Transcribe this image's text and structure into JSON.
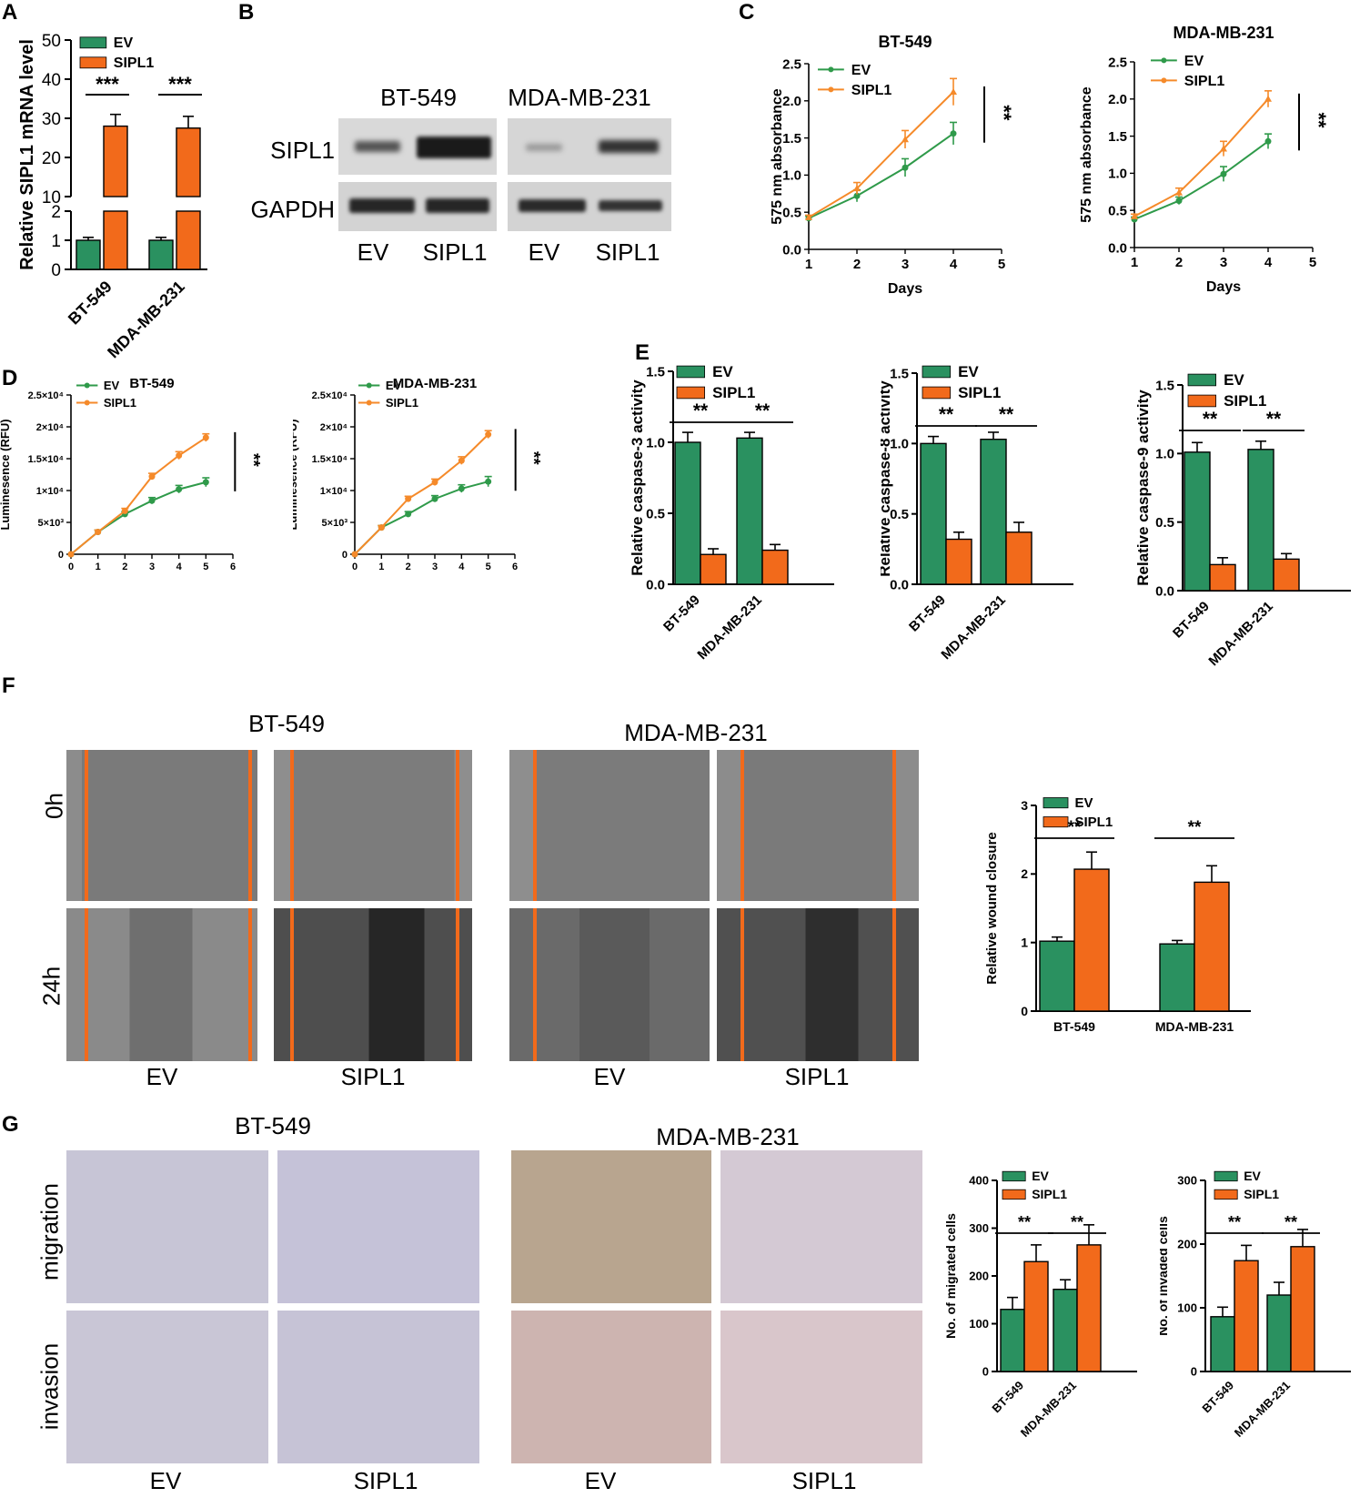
{
  "colors": {
    "ev": "#2a9160",
    "sipl1": "#f26a1b",
    "ev_line": "#2f9a4a",
    "sipl1_line": "#f58a2a"
  },
  "panels": {
    "a": "A",
    "b": "B",
    "c": "C",
    "d": "D",
    "e": "E",
    "f": "F",
    "g": "G"
  },
  "legend": {
    "ev": "EV",
    "sipl1": "SIPL1"
  },
  "cells": {
    "bt549": "BT-549",
    "mda": "MDA-MB-231"
  },
  "blot": {
    "row1": "SIPL1",
    "row2": "GAPDH",
    "col1": "EV",
    "col2": "SIPL1",
    "col3": "EV",
    "col4": "SIPL1"
  },
  "wound": {
    "t0": "0h",
    "t24": "24h",
    "col1": "EV",
    "col2": "SIPL1",
    "col3": "EV",
    "col4": "SIPL1"
  },
  "transwell": {
    "r1": "migration",
    "r2": "invasion",
    "col1": "EV",
    "col2": "SIPL1",
    "col3": "EV",
    "col4": "SIPL1"
  },
  "chart_data": [
    {
      "id": "A",
      "type": "bar",
      "ylabel": "Relative SIPL1 mRNA level",
      "categories": [
        "BT-549",
        "MDA-MB-231"
      ],
      "series": [
        {
          "name": "EV",
          "values": [
            1,
            1
          ],
          "errors": [
            0.1,
            0.1
          ]
        },
        {
          "name": "SIPL1",
          "values": [
            28,
            27.5
          ],
          "errors": [
            3,
            3
          ]
        }
      ],
      "y_broken": true,
      "ylim_lower": [
        0,
        2
      ],
      "ylim_upper": [
        10,
        50
      ],
      "yticks": [
        "0",
        "1",
        "2",
        "10",
        "20",
        "30",
        "40",
        "50"
      ],
      "annotations": [
        "***",
        "***"
      ]
    },
    {
      "id": "C1",
      "type": "line",
      "title": "BT-549",
      "xlabel": "Days",
      "ylabel": "575 nm absorbance",
      "xlim": [
        1,
        5
      ],
      "ylim": [
        0,
        2.5
      ],
      "xticks": [
        "1",
        "2",
        "3",
        "4",
        "5"
      ],
      "yticks": [
        "0.0",
        "0.5",
        "1.0",
        "1.5",
        "2.0",
        "2.5"
      ],
      "x": [
        1,
        2,
        3,
        4
      ],
      "series": [
        {
          "name": "EV",
          "values": [
            0.42,
            0.72,
            1.1,
            1.56
          ],
          "errors": [
            0.03,
            0.08,
            0.12,
            0.15
          ]
        },
        {
          "name": "SIPL1",
          "values": [
            0.43,
            0.82,
            1.48,
            2.12
          ],
          "errors": [
            0.03,
            0.08,
            0.12,
            0.18
          ]
        }
      ],
      "annotations": [
        "**"
      ]
    },
    {
      "id": "C2",
      "type": "line",
      "title": "MDA-MB-231",
      "xlabel": "Days",
      "ylabel": "575 nm absorbance",
      "xlim": [
        1,
        5
      ],
      "ylim": [
        0,
        2.5
      ],
      "xticks": [
        "1",
        "2",
        "3",
        "4",
        "5"
      ],
      "yticks": [
        "0.0",
        "0.5",
        "1.0",
        "1.5",
        "2.0",
        "2.5"
      ],
      "x": [
        1,
        2,
        3,
        4
      ],
      "series": [
        {
          "name": "EV",
          "values": [
            0.38,
            0.63,
            0.99,
            1.43
          ],
          "errors": [
            0.03,
            0.05,
            0.1,
            0.1
          ]
        },
        {
          "name": "SIPL1",
          "values": [
            0.42,
            0.74,
            1.33,
            2.0
          ],
          "errors": [
            0.03,
            0.06,
            0.1,
            0.11
          ]
        }
      ],
      "annotations": [
        "**"
      ]
    },
    {
      "id": "D1",
      "type": "line",
      "title": "BT-549",
      "ylabel": "Luminesence (RFU)",
      "xlim": [
        0,
        6
      ],
      "ylim": [
        0,
        25000
      ],
      "xticks": [
        "0",
        "1",
        "2",
        "3",
        "4",
        "5",
        "6"
      ],
      "yticks": [
        "0",
        "5×10³",
        "1×10⁴",
        "1.5×10⁴",
        "2×10⁴",
        "2.5×10⁴"
      ],
      "x": [
        0,
        1,
        2,
        3,
        4,
        5
      ],
      "series": [
        {
          "name": "EV",
          "values": [
            0,
            3500,
            6300,
            8400,
            10200,
            11300
          ],
          "errors": [
            0,
            300,
            400,
            500,
            600,
            700
          ]
        },
        {
          "name": "SIPL1",
          "values": [
            0,
            3500,
            6800,
            12200,
            15500,
            18300
          ],
          "errors": [
            0,
            300,
            400,
            500,
            600,
            600
          ]
        }
      ],
      "annotations": [
        "**"
      ]
    },
    {
      "id": "D2",
      "type": "line",
      "title": "MDA-MB-231",
      "ylabel": "Luminesence (RFU)",
      "xlim": [
        0,
        6
      ],
      "ylim": [
        0,
        25000
      ],
      "xticks": [
        "0",
        "1",
        "2",
        "3",
        "4",
        "5",
        "6"
      ],
      "yticks": [
        "0",
        "5×10³",
        "1×10⁴",
        "1.5×10⁴",
        "2×10⁴",
        "2.5×10⁴"
      ],
      "x": [
        0,
        1,
        2,
        3,
        4,
        5
      ],
      "series": [
        {
          "name": "EV",
          "values": [
            0,
            4200,
            6300,
            8700,
            10300,
            11400
          ],
          "errors": [
            0,
            300,
            400,
            500,
            600,
            800
          ]
        },
        {
          "name": "SIPL1",
          "values": [
            0,
            4200,
            8700,
            11300,
            14700,
            18800
          ],
          "errors": [
            0,
            300,
            400,
            500,
            600,
            600
          ]
        }
      ],
      "annotations": [
        "**"
      ]
    },
    {
      "id": "E1",
      "type": "bar",
      "ylabel": "Relative caspase-3 activity",
      "categories": [
        "BT-549",
        "MDA-MB-231"
      ],
      "ylim": [
        0,
        1.5
      ],
      "yticks": [
        "0.0",
        "0.5",
        "1.0",
        "1.5"
      ],
      "series": [
        {
          "name": "EV",
          "values": [
            1.0,
            1.03
          ],
          "errors": [
            0.07,
            0.04
          ]
        },
        {
          "name": "SIPL1",
          "values": [
            0.21,
            0.24
          ],
          "errors": [
            0.04,
            0.04
          ]
        }
      ],
      "annotations": [
        "**",
        "**"
      ]
    },
    {
      "id": "E2",
      "type": "bar",
      "ylabel": "Relative caspase-8 activity",
      "categories": [
        "BT-549",
        "MDA-MB-231"
      ],
      "ylim": [
        0,
        1.5
      ],
      "yticks": [
        "0.0",
        "0.5",
        "1.0",
        "1.5"
      ],
      "series": [
        {
          "name": "EV",
          "values": [
            1.0,
            1.03
          ],
          "errors": [
            0.05,
            0.05
          ]
        },
        {
          "name": "SIPL1",
          "values": [
            0.32,
            0.37
          ],
          "errors": [
            0.05,
            0.07
          ]
        }
      ],
      "annotations": [
        "**",
        "**"
      ]
    },
    {
      "id": "E3",
      "type": "bar",
      "ylabel": "Relative caspase-9 activity",
      "categories": [
        "BT-549",
        "MDA-MB-231"
      ],
      "ylim": [
        0,
        1.5
      ],
      "yticks": [
        "0.0",
        "0.5",
        "1.0",
        "1.5"
      ],
      "series": [
        {
          "name": "EV",
          "values": [
            1.01,
            1.03
          ],
          "errors": [
            0.07,
            0.06
          ]
        },
        {
          "name": "SIPL1",
          "values": [
            0.19,
            0.23
          ],
          "errors": [
            0.05,
            0.04
          ]
        }
      ],
      "annotations": [
        "**",
        "**"
      ]
    },
    {
      "id": "F",
      "type": "bar",
      "ylabel": "Relative wound closure",
      "categories": [
        "BT-549",
        "MDA-MB-231"
      ],
      "ylim": [
        0,
        3
      ],
      "yticks": [
        "0",
        "1",
        "2",
        "3"
      ],
      "series": [
        {
          "name": "EV",
          "values": [
            1.02,
            0.98
          ],
          "errors": [
            0.06,
            0.05
          ]
        },
        {
          "name": "SIPL1",
          "values": [
            2.07,
            1.88
          ],
          "errors": [
            0.25,
            0.24
          ]
        }
      ],
      "annotations": [
        "**",
        "**"
      ]
    },
    {
      "id": "G1",
      "type": "bar",
      "ylabel": "No. of migrated cells",
      "categories": [
        "BT-549",
        "MDA-MB-231"
      ],
      "ylim": [
        0,
        400
      ],
      "yticks": [
        "0",
        "100",
        "200",
        "300",
        "400"
      ],
      "series": [
        {
          "name": "EV",
          "values": [
            130,
            172
          ],
          "errors": [
            25,
            20
          ]
        },
        {
          "name": "SIPL1",
          "values": [
            230,
            265
          ],
          "errors": [
            35,
            42
          ]
        }
      ],
      "annotations": [
        "**",
        "**"
      ]
    },
    {
      "id": "G2",
      "type": "bar",
      "ylabel": "No. of invaded cells",
      "categories": [
        "BT-549",
        "MDA-MB-231"
      ],
      "ylim": [
        0,
        300
      ],
      "yticks": [
        "0",
        "100",
        "200",
        "300"
      ],
      "series": [
        {
          "name": "EV",
          "values": [
            86,
            120
          ],
          "errors": [
            15,
            20
          ]
        },
        {
          "name": "SIPL1",
          "values": [
            174,
            196
          ],
          "errors": [
            24,
            27
          ]
        }
      ],
      "annotations": [
        "**",
        "**"
      ]
    }
  ]
}
